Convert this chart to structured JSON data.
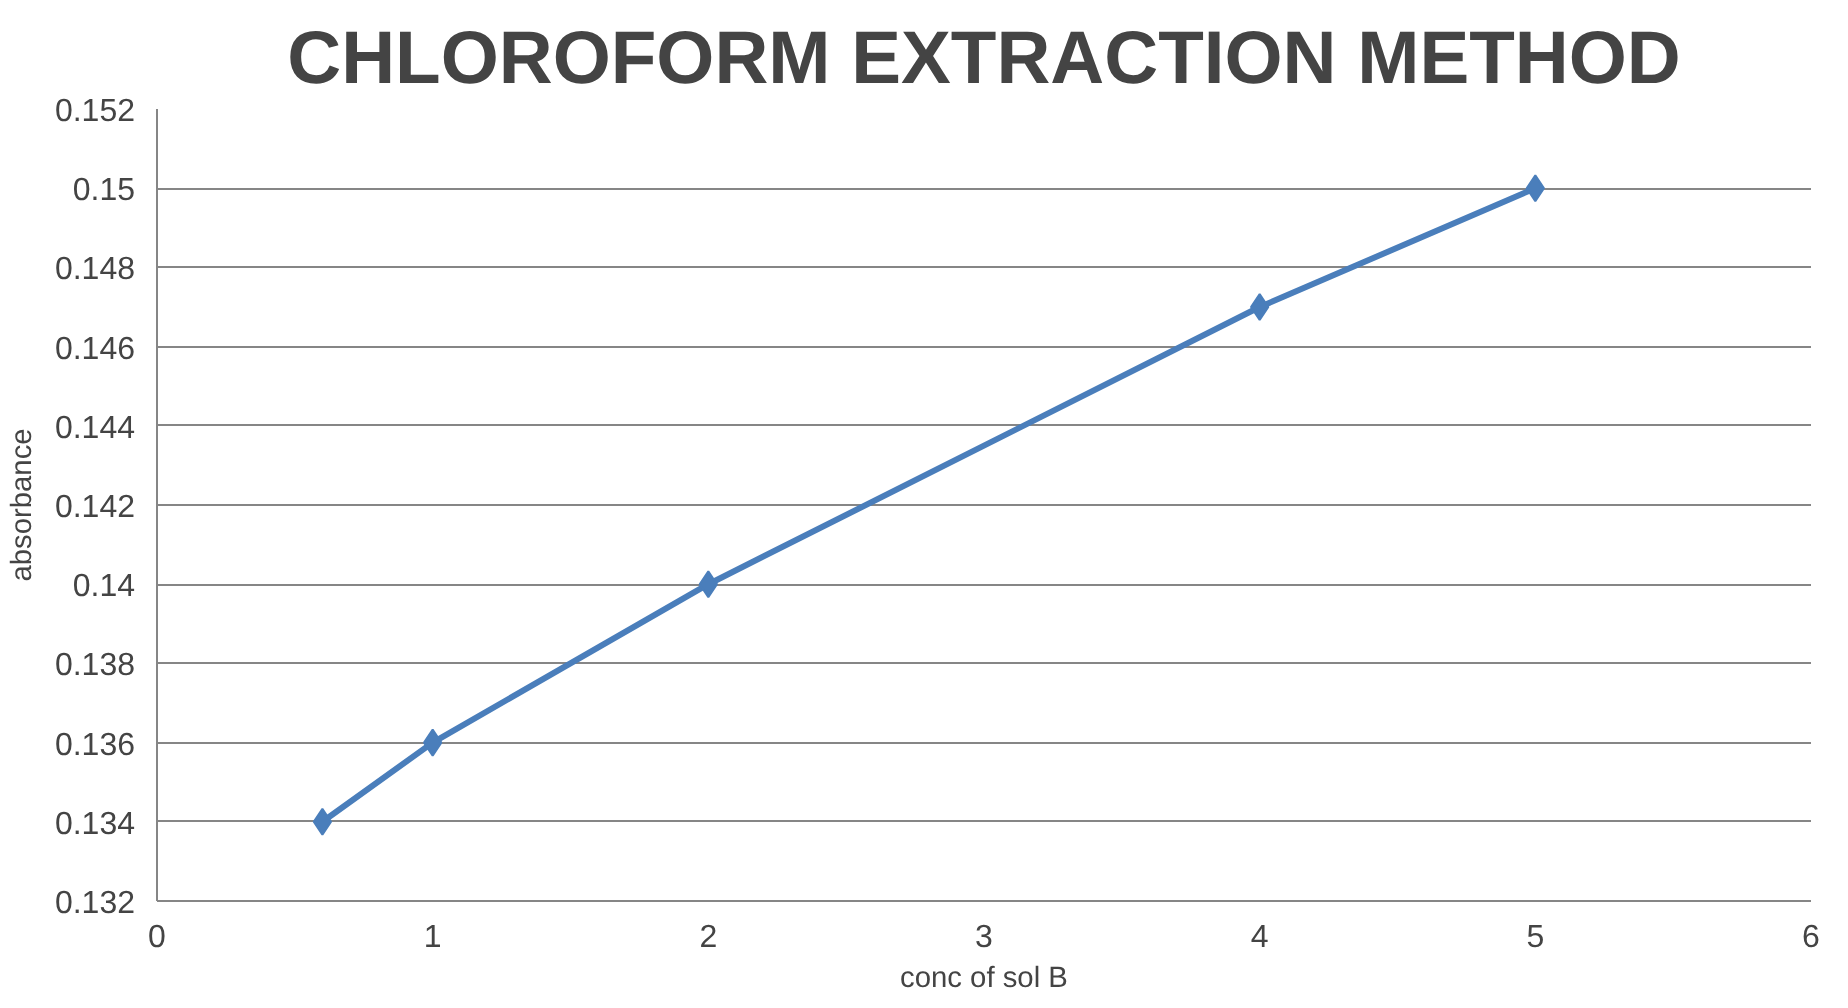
{
  "chart_data": {
    "type": "line",
    "title": "CHLOROFORM EXTRACTION METHOD",
    "xlabel": "conc of sol B",
    "ylabel": "absorbance",
    "x": [
      0.6,
      1,
      2,
      4,
      5
    ],
    "series": [
      {
        "color": "#4a7ebb",
        "values": [
          0.134,
          0.136,
          0.14,
          0.147,
          0.15
        ]
      }
    ],
    "xlim": [
      0,
      6
    ],
    "xticks": [
      0,
      1,
      2,
      3,
      4,
      5,
      6
    ],
    "ylim": [
      0.132,
      0.152
    ],
    "yticks": [
      0.132,
      0.134,
      0.136,
      0.138,
      0.14,
      0.142,
      0.144,
      0.146,
      0.148,
      0.15,
      0.152
    ],
    "grid": "y",
    "marker": "diamond",
    "line_style": "solid"
  }
}
